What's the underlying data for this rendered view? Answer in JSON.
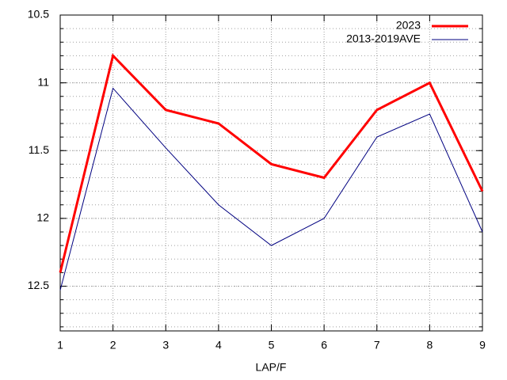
{
  "chart_data": {
    "type": "line",
    "x_label": "LAP/F",
    "x": [
      1,
      2,
      3,
      4,
      5,
      6,
      7,
      8,
      9
    ],
    "xlim": [
      1,
      9
    ],
    "xticks": [
      1,
      2,
      3,
      4,
      5,
      6,
      7,
      8,
      9
    ],
    "ylim": [
      12.83,
      10.5
    ],
    "yticks": [
      10.5,
      11,
      11.5,
      12,
      12.5
    ],
    "y_minor_divisions": 5,
    "grid": true,
    "legend": "top-right",
    "series": [
      {
        "name": "2023",
        "color": "#ff0000",
        "width": 3,
        "values": [
          12.4,
          10.8,
          11.2,
          11.3,
          11.6,
          11.7,
          11.2,
          11.0,
          11.8
        ]
      },
      {
        "name": "2013-2019AVE",
        "color": "#000080",
        "width": 1,
        "values": [
          12.53,
          11.04,
          11.48,
          11.9,
          12.2,
          12.0,
          11.4,
          11.23,
          12.1
        ]
      }
    ]
  }
}
